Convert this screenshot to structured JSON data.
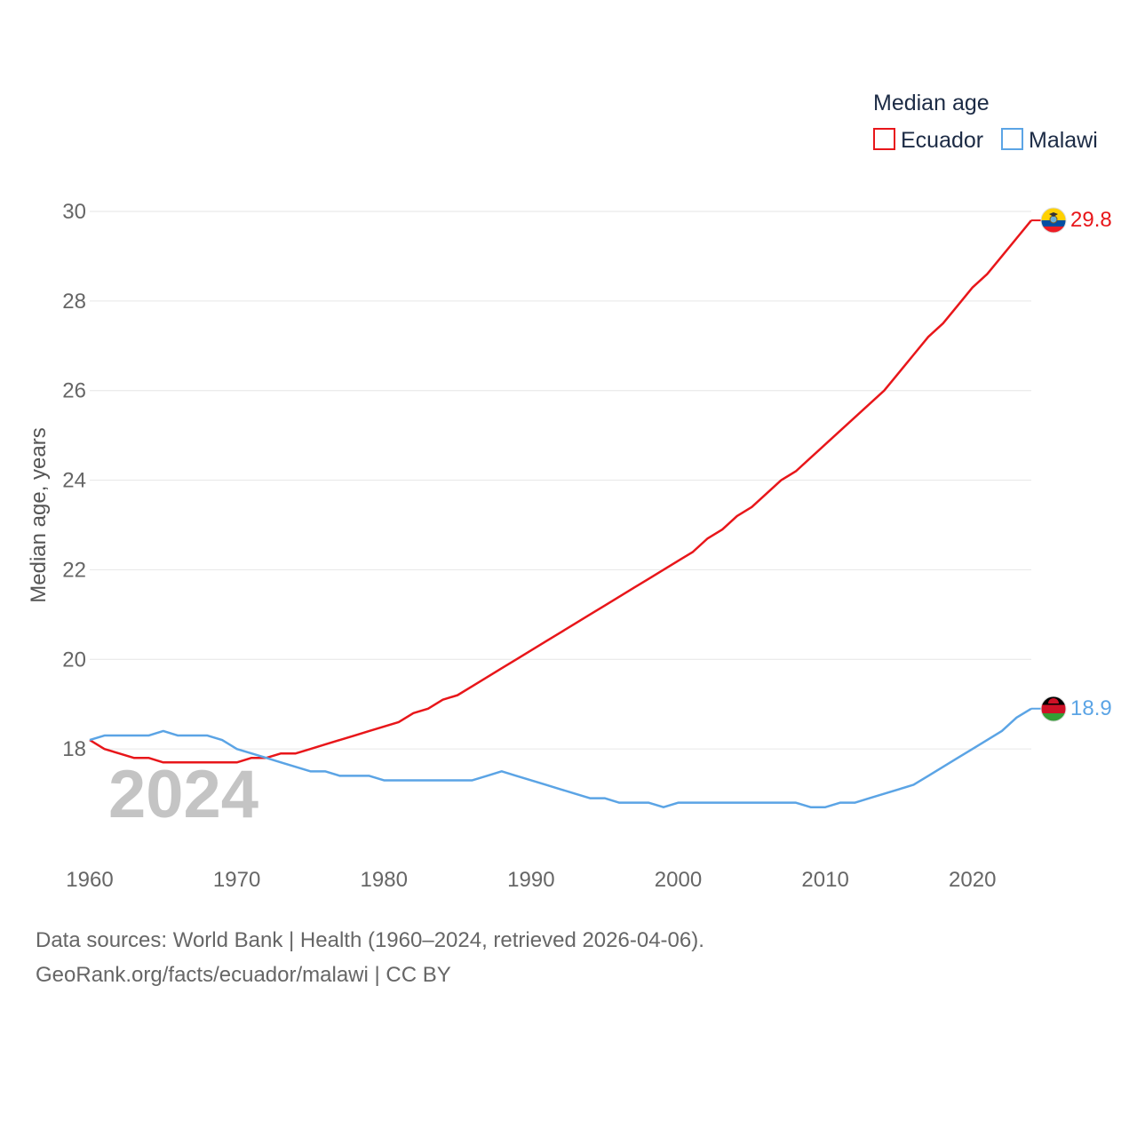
{
  "chart_data": {
    "type": "line",
    "ylabel": "Median age, years",
    "legend_title": "Median age",
    "watermark_year": "2024",
    "x_ticks": [
      "1960",
      "1970",
      "1980",
      "1990",
      "2000",
      "2010",
      "2020"
    ],
    "y_ticks": [
      "18",
      "20",
      "22",
      "24",
      "26",
      "28",
      "30"
    ],
    "xlim": [
      1960,
      2024
    ],
    "ylim": [
      16,
      30
    ],
    "grid": true,
    "legend_position": "top-right",
    "x": [
      1960,
      1961,
      1962,
      1963,
      1964,
      1965,
      1966,
      1967,
      1968,
      1969,
      1970,
      1971,
      1972,
      1973,
      1974,
      1975,
      1976,
      1977,
      1978,
      1979,
      1980,
      1981,
      1982,
      1983,
      1984,
      1985,
      1986,
      1987,
      1988,
      1989,
      1990,
      1991,
      1992,
      1993,
      1994,
      1995,
      1996,
      1997,
      1998,
      1999,
      2000,
      2001,
      2002,
      2003,
      2004,
      2005,
      2006,
      2007,
      2008,
      2009,
      2010,
      2011,
      2012,
      2013,
      2014,
      2015,
      2016,
      2017,
      2018,
      2019,
      2020,
      2021,
      2022,
      2023,
      2024
    ],
    "series": [
      {
        "name": "Ecuador",
        "color": "#e8161a",
        "end_label": "29.8",
        "values": [
          18.2,
          18.0,
          17.9,
          17.8,
          17.8,
          17.7,
          17.7,
          17.7,
          17.7,
          17.7,
          17.7,
          17.8,
          17.8,
          17.9,
          17.9,
          18.0,
          18.1,
          18.2,
          18.3,
          18.4,
          18.5,
          18.6,
          18.8,
          18.9,
          19.1,
          19.2,
          19.4,
          19.6,
          19.8,
          20.0,
          20.2,
          20.4,
          20.6,
          20.8,
          21.0,
          21.2,
          21.4,
          21.6,
          21.8,
          22.0,
          22.2,
          22.4,
          22.7,
          22.9,
          23.2,
          23.4,
          23.7,
          24.0,
          24.2,
          24.5,
          24.8,
          25.1,
          25.4,
          25.7,
          26.0,
          26.4,
          26.8,
          27.2,
          27.5,
          27.9,
          28.3,
          28.6,
          29.0,
          29.4,
          29.8
        ]
      },
      {
        "name": "Malawi",
        "color": "#5ba4e5",
        "end_label": "18.9",
        "values": [
          18.2,
          18.3,
          18.3,
          18.3,
          18.3,
          18.4,
          18.3,
          18.3,
          18.3,
          18.2,
          18.0,
          17.9,
          17.8,
          17.7,
          17.6,
          17.5,
          17.5,
          17.4,
          17.4,
          17.4,
          17.3,
          17.3,
          17.3,
          17.3,
          17.3,
          17.3,
          17.3,
          17.4,
          17.5,
          17.4,
          17.3,
          17.2,
          17.1,
          17.0,
          16.9,
          16.9,
          16.8,
          16.8,
          16.8,
          16.7,
          16.8,
          16.8,
          16.8,
          16.8,
          16.8,
          16.8,
          16.8,
          16.8,
          16.8,
          16.7,
          16.7,
          16.8,
          16.8,
          16.9,
          17.0,
          17.1,
          17.2,
          17.4,
          17.6,
          17.8,
          18.0,
          18.2,
          18.4,
          18.7,
          18.9
        ]
      }
    ]
  },
  "footer": {
    "sources": "Data sources: World Bank | Health (1960–2024, retrieved 2026-04-06).",
    "credit": "GeoRank.org/facts/ecuador/malawi | CC BY"
  }
}
